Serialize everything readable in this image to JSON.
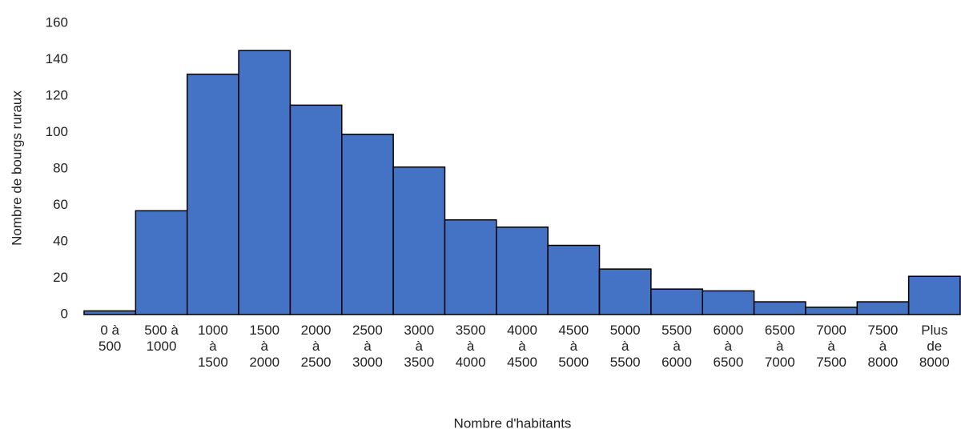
{
  "chart_data": {
    "type": "bar",
    "x_label": "Nombre d'habitants",
    "y_label": "Nombre de bourgs ruraux",
    "categories": [
      "0 à 500",
      "500 à 1000",
      "1000 à 1500",
      "1500 à 2000",
      "2000 à 2500",
      "2500 à 3000",
      "3000 à 3500",
      "3500 à 4000",
      "4000 à 4500",
      "4500 à 5000",
      "5000 à 5500",
      "5500 à 6000",
      "6000 à 6500",
      "6500 à 7000",
      "7000 à 7500",
      "7500 à 8000",
      "Plus de 8000"
    ],
    "values": [
      2,
      57,
      132,
      145,
      115,
      99,
      81,
      52,
      48,
      38,
      25,
      14,
      13,
      7,
      4,
      7,
      21
    ],
    "color": "#4472c4",
    "ylim": [
      0,
      160
    ],
    "yticks": [
      0,
      20,
      40,
      60,
      80,
      100,
      120,
      140,
      160
    ],
    "grid": false
  }
}
